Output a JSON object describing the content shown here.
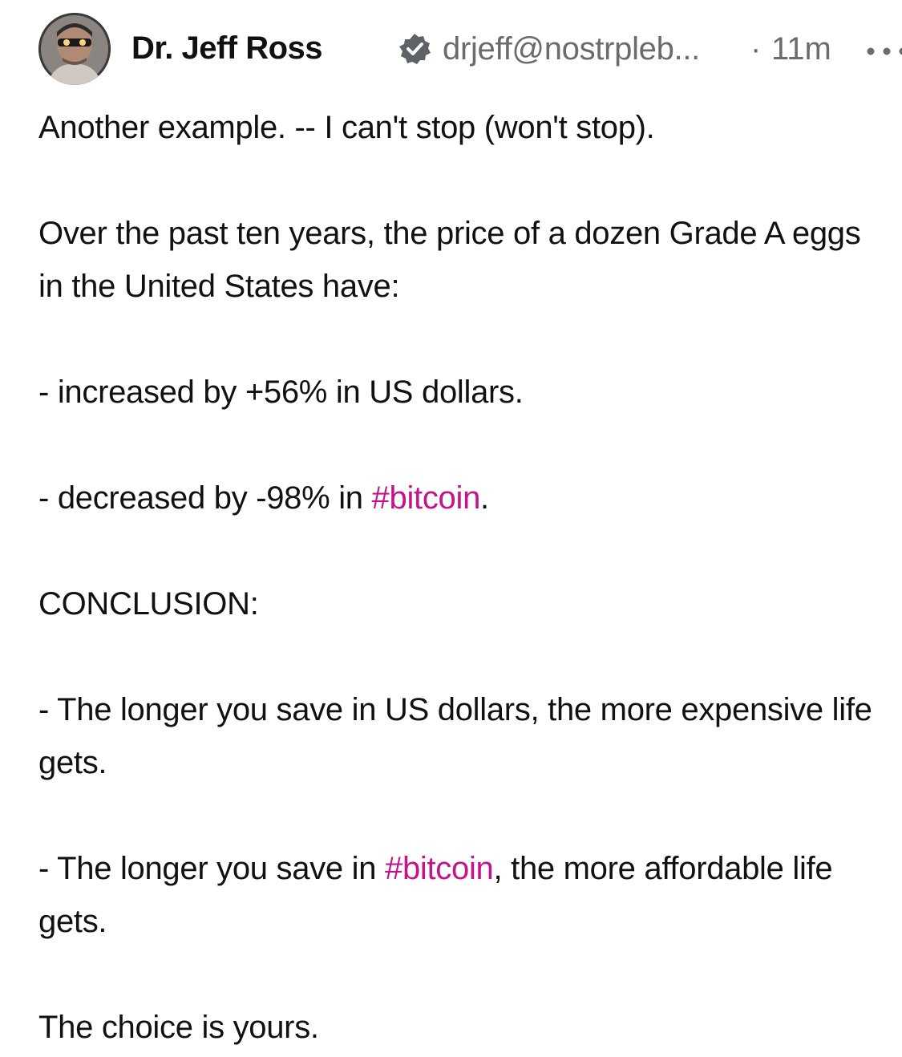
{
  "post": {
    "author": {
      "name": "Dr. Jeff Ross",
      "verified_icon": "verified-badge-icon",
      "handle": "drjeff@nostrpleb...",
      "separator": "·",
      "time": "11m",
      "avatar_icon": "avatar"
    },
    "menu_icon": "more-dots-icon",
    "body": {
      "line1": "Another example. -- I can't stop (won't stop).",
      "para2": "Over the past ten years, the price of a dozen Grade A eggs in the United States have:",
      "para3": "- increased by +56% in US dollars.",
      "para4_prefix": "- decreased by -98% in ",
      "para4_hashtag": "#bitcoin",
      "para4_suffix": ".",
      "para5": "CONCLUSION:",
      "para6": "- The longer you save in US dollars, the more expensive life gets.",
      "para7_prefix": "- The longer you save in ",
      "para7_hashtag": "#bitcoin",
      "para7_suffix": ", the more affordable life gets.",
      "para8": "The choice is yours."
    },
    "colors": {
      "hashtag": "#c3148c",
      "muted": "#6b6b6b",
      "text": "#111111"
    }
  }
}
